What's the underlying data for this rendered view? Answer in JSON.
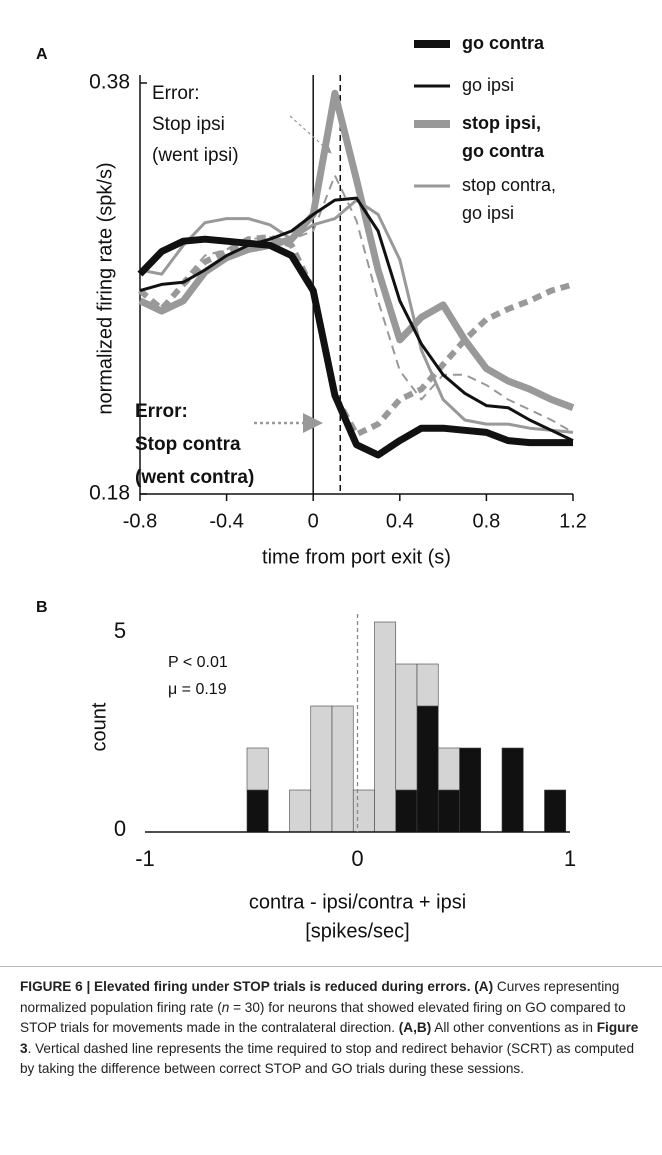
{
  "chart_data": [
    {
      "type": "line",
      "panel_label": "A",
      "y_label": "normalized firing rate (spk/s)",
      "x_label": "time from port exit (s)",
      "xlim": [
        -0.8,
        1.2
      ],
      "xticks": [
        {
          "value": -0.8,
          "label": "-0.8"
        },
        {
          "value": -0.4,
          "label": "-0.4"
        },
        0,
        0.4,
        0.8,
        1.2
      ],
      "ylim": [
        0.18,
        0.38
      ],
      "yticks": [
        0.18,
        0.38
      ],
      "x": [
        -0.8,
        -0.7,
        -0.6,
        -0.5,
        -0.4,
        -0.3,
        -0.2,
        -0.1,
        0,
        0.1,
        0.2,
        0.3,
        0.4,
        0.5,
        0.6,
        0.7,
        0.8,
        0.9,
        1.0,
        1.1,
        1.2
      ],
      "series": [
        {
          "name": [
            "go contra"
          ],
          "color": "#111111",
          "width": "thick",
          "dashed": false,
          "values": [
            0.287,
            0.298,
            0.303,
            0.304,
            0.303,
            0.302,
            0.301,
            0.296,
            0.279,
            0.228,
            0.204,
            0.199,
            0.206,
            0.212,
            0.212,
            0.211,
            0.21,
            0.206,
            0.205,
            0.205,
            0.205
          ]
        },
        {
          "name": [
            "go ipsi"
          ],
          "color": "#111111",
          "width": "thin",
          "dashed": false,
          "values": [
            0.279,
            0.282,
            0.283,
            0.289,
            0.296,
            0.301,
            0.304,
            0.308,
            0.316,
            0.323,
            0.324,
            0.308,
            0.274,
            0.253,
            0.238,
            0.229,
            0.223,
            0.222,
            0.216,
            0.211,
            0.206
          ]
        },
        {
          "name": [
            "stop ipsi,",
            "go contra"
          ],
          "color": "#999999",
          "width": "thick",
          "dashed": false,
          "values": [
            0.274,
            0.269,
            0.274,
            0.288,
            0.295,
            0.299,
            0.301,
            0.304,
            0.316,
            0.375,
            0.333,
            0.289,
            0.255,
            0.266,
            0.272,
            0.255,
            0.241,
            0.235,
            0.231,
            0.226,
            0.222
          ]
        },
        {
          "name": [
            "stop contra,",
            "go ipsi"
          ],
          "color": "#999999",
          "width": "thin",
          "dashed": false,
          "values": [
            0.289,
            0.287,
            0.301,
            0.312,
            0.314,
            0.314,
            0.311,
            0.304,
            0.311,
            0.314,
            0.323,
            0.316,
            0.294,
            0.25,
            0.226,
            0.216,
            0.214,
            0.214,
            0.212,
            0.211,
            0.21
          ]
        },
        {
          "color": "#999999",
          "width": "thin",
          "dashed": true,
          "values": [
            0.279,
            0.27,
            0.284,
            0.296,
            0.299,
            0.304,
            0.305,
            0.304,
            0.308,
            0.335,
            0.313,
            0.274,
            0.24,
            0.226,
            0.238,
            0.238,
            0.233,
            0.226,
            0.221,
            0.216,
            0.21
          ]
        },
        {
          "color": "#999999",
          "width": "thick",
          "dashed": true,
          "values": [
            0.279,
            0.27,
            0.282,
            0.293,
            0.298,
            0.304,
            0.305,
            0.301,
            0.279,
            0.228,
            0.209,
            0.214,
            0.226,
            0.231,
            0.243,
            0.255,
            0.265,
            0.27,
            0.274,
            0.279,
            0.282
          ]
        }
      ],
      "vlines": [
        {
          "x": 0,
          "dashed": false
        },
        {
          "x": 0.125,
          "dashed": true
        }
      ],
      "annotations": [
        {
          "lines": [
            "Error:",
            "Stop ipsi",
            "(went ipsi)"
          ],
          "bold": false
        },
        {
          "lines": [
            "Error:",
            "Stop contra",
            "(went contra)"
          ],
          "bold": true
        }
      ]
    },
    {
      "type": "histogram",
      "panel_label": "B",
      "y_label": "count",
      "x_label": [
        "contra - ipsi/contra + ipsi",
        "[spikes/sec]"
      ],
      "xlim": [
        -1,
        1
      ],
      "xticks": [
        {
          "value": -1,
          "label": "-1"
        },
        0,
        1
      ],
      "ylim": [
        0,
        5
      ],
      "yticks": [
        0,
        5
      ],
      "bins": [
        -1.02,
        -0.92,
        -0.82,
        -0.72,
        -0.62,
        -0.52,
        -0.42,
        -0.32,
        -0.22,
        -0.12,
        -0.02,
        0.08,
        0.18,
        0.28,
        0.38,
        0.48,
        0.58,
        0.68,
        0.78,
        0.88,
        0.98,
        1.08
      ],
      "series": [
        {
          "color": "#111111",
          "values": [
            0,
            0,
            0,
            0,
            0,
            1,
            0,
            0,
            0,
            0,
            0,
            0,
            1,
            3,
            1,
            2,
            0,
            2,
            0,
            1,
            0
          ]
        },
        {
          "color": "#d4d4d4",
          "values": [
            0,
            0,
            0,
            0,
            0,
            1,
            0,
            1,
            3,
            3,
            1,
            5,
            3,
            1,
            1,
            0,
            0,
            0,
            0,
            0,
            0
          ]
        }
      ],
      "vline": {
        "x": 0,
        "dashed": true
      },
      "annotations": [
        "P < 0.01",
        "μ = 0.19"
      ]
    }
  ],
  "caption": {
    "title": "FIGURE 6 | Elevated firing under STOP trials is reduced during errors.",
    "body": [
      "(A)",
      " Curves representing normalized population firing rate (",
      "n",
      " = 30) for neurons that showed elevated firing on GO compared to STOP trials for movements made in the contralateral direction. ",
      "(A,B)",
      " All other conventions as in ",
      "Figure 3",
      ". Vertical dashed line represents the time required to stop and redirect behavior (SCRT) as computed by taking the difference between correct STOP and GO trials during these sessions."
    ]
  }
}
